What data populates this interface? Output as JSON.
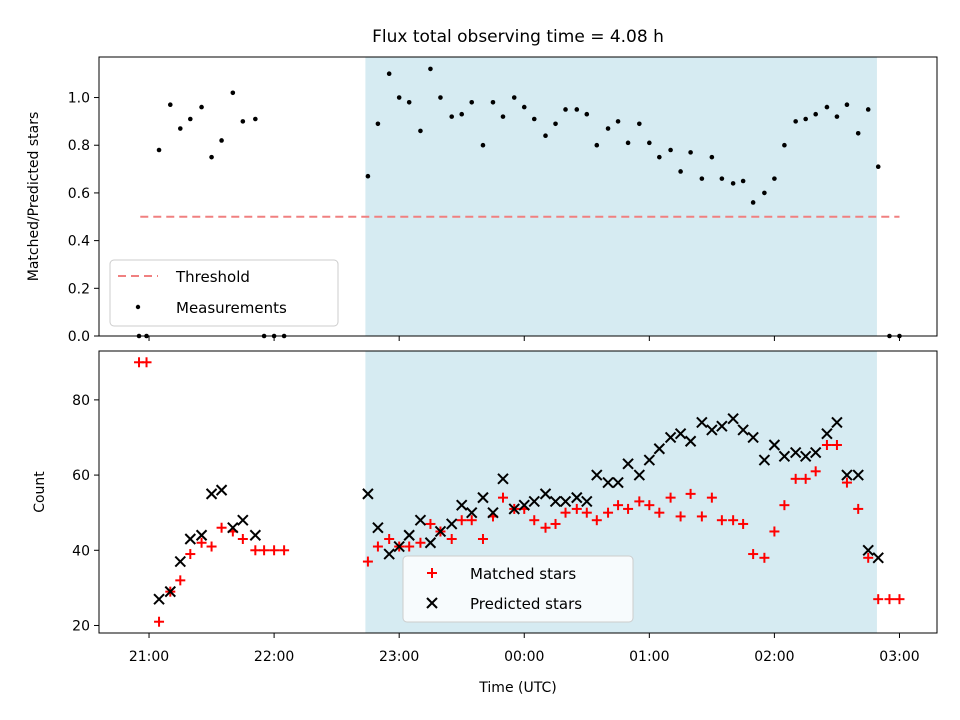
{
  "chart_data": [
    {
      "type": "scatter",
      "title": "Flux total observing time = 4.08 h",
      "xlabel": "",
      "ylabel": "Matched/Predicted stars",
      "ylim": [
        0,
        1.17
      ],
      "yticks": [
        "0.0",
        "0.2",
        "0.4",
        "0.6",
        "0.8",
        "1.0"
      ],
      "xlim_hours": [
        20.6,
        27.3
      ],
      "shaded_span_hours": [
        22.73,
        26.82
      ],
      "legend": {
        "placement": "lower-left",
        "entries": [
          "Threshold",
          "Measurements"
        ]
      },
      "threshold": {
        "name": "Threshold",
        "value": 0.5,
        "x_range_hours": [
          20.93,
          27.0
        ]
      },
      "series": [
        {
          "name": "Measurements",
          "x_hours": [
            20.92,
            20.98,
            21.08,
            21.17,
            21.25,
            21.33,
            21.42,
            21.5,
            21.58,
            21.67,
            21.75,
            21.85,
            21.92,
            22.0,
            22.08,
            22.75,
            22.83,
            22.92,
            23.0,
            23.08,
            23.17,
            23.25,
            23.33,
            23.42,
            23.5,
            23.58,
            23.67,
            23.75,
            23.83,
            23.92,
            24.0,
            24.08,
            24.17,
            24.25,
            24.33,
            24.42,
            24.5,
            24.58,
            24.67,
            24.75,
            24.83,
            24.92,
            25.0,
            25.08,
            25.17,
            25.25,
            25.33,
            25.42,
            25.5,
            25.58,
            25.67,
            25.75,
            25.83,
            25.92,
            26.0,
            26.08,
            26.17,
            26.25,
            26.33,
            26.42,
            26.5,
            26.58,
            26.67,
            26.75,
            26.83,
            26.92,
            27.0
          ],
          "y": [
            0.0,
            0.0,
            0.78,
            0.97,
            0.87,
            0.91,
            0.96,
            0.75,
            0.82,
            1.02,
            0.9,
            0.91,
            0.0,
            0.0,
            0.0,
            0.67,
            0.89,
            1.1,
            1.0,
            0.98,
            0.86,
            1.12,
            1.0,
            0.92,
            0.93,
            0.98,
            0.8,
            0.98,
            0.92,
            1.0,
            0.96,
            0.91,
            0.84,
            0.89,
            0.95,
            0.95,
            0.93,
            0.8,
            0.87,
            0.9,
            0.81,
            0.89,
            0.81,
            0.75,
            0.78,
            0.69,
            0.77,
            0.66,
            0.75,
            0.66,
            0.64,
            0.65,
            0.56,
            0.6,
            0.66,
            0.8,
            0.9,
            0.91,
            0.93,
            0.96,
            0.92,
            0.97,
            0.85,
            0.95,
            0.71,
            0.0,
            0.0
          ]
        }
      ]
    },
    {
      "type": "scatter",
      "title": "",
      "xlabel": "Time (UTC)",
      "ylabel": "Count",
      "ylim": [
        18,
        93
      ],
      "yticks": [
        "20",
        "40",
        "60",
        "80"
      ],
      "xlim_hours": [
        20.6,
        27.3
      ],
      "xticks": [
        {
          "hours": 21,
          "label": "21:00"
        },
        {
          "hours": 22,
          "label": "22:00"
        },
        {
          "hours": 23,
          "label": "23:00"
        },
        {
          "hours": 24,
          "label": "00:00"
        },
        {
          "hours": 25,
          "label": "01:00"
        },
        {
          "hours": 26,
          "label": "02:00"
        },
        {
          "hours": 27,
          "label": "03:00"
        }
      ],
      "shaded_span_hours": [
        22.73,
        26.82
      ],
      "legend": {
        "placement": "lower-center",
        "entries": [
          "Matched stars",
          "Predicted stars"
        ]
      },
      "series": [
        {
          "name": "Matched stars",
          "color": "#ff0000",
          "x_hours": [
            20.92,
            20.98,
            21.08,
            21.17,
            21.25,
            21.33,
            21.42,
            21.5,
            21.58,
            21.67,
            21.75,
            21.85,
            21.92,
            22.0,
            22.08,
            22.75,
            22.83,
            22.92,
            23.0,
            23.08,
            23.17,
            23.25,
            23.33,
            23.42,
            23.5,
            23.58,
            23.67,
            23.75,
            23.83,
            23.92,
            24.0,
            24.08,
            24.17,
            24.25,
            24.33,
            24.42,
            24.5,
            24.58,
            24.67,
            24.75,
            24.83,
            24.92,
            25.0,
            25.08,
            25.17,
            25.25,
            25.33,
            25.42,
            25.5,
            25.58,
            25.67,
            25.75,
            25.83,
            25.92,
            26.0,
            26.08,
            26.17,
            26.25,
            26.33,
            26.42,
            26.5,
            26.58,
            26.67,
            26.75,
            26.83,
            26.92,
            27.0
          ],
          "y": [
            90,
            90,
            21,
            29,
            32,
            39,
            42,
            41,
            46,
            45,
            43,
            40,
            40,
            40,
            40,
            37,
            41,
            43,
            41,
            41,
            42,
            47,
            45,
            43,
            48,
            48,
            43,
            49,
            54,
            51,
            51,
            48,
            46,
            47,
            50,
            51,
            50,
            48,
            50,
            52,
            51,
            53,
            52,
            50,
            54,
            49,
            55,
            49,
            54,
            48,
            48,
            47,
            39,
            38,
            45,
            52,
            59,
            59,
            61,
            68,
            68,
            58,
            51,
            38,
            27,
            27,
            27
          ]
        },
        {
          "name": "Predicted stars",
          "color": "#000000",
          "x_hours": [
            21.08,
            21.17,
            21.25,
            21.33,
            21.42,
            21.5,
            21.58,
            21.67,
            21.75,
            21.85,
            22.75,
            22.83,
            22.92,
            23.0,
            23.08,
            23.17,
            23.25,
            23.33,
            23.42,
            23.5,
            23.58,
            23.67,
            23.75,
            23.83,
            23.92,
            24.0,
            24.08,
            24.17,
            24.25,
            24.33,
            24.42,
            24.5,
            24.58,
            24.67,
            24.75,
            24.83,
            24.92,
            25.0,
            25.08,
            25.17,
            25.25,
            25.33,
            25.42,
            25.5,
            25.58,
            25.67,
            25.75,
            25.83,
            25.92,
            26.0,
            26.08,
            26.17,
            26.25,
            26.33,
            26.42,
            26.5,
            26.58,
            26.67,
            26.75,
            26.83
          ],
          "y": [
            27,
            29,
            37,
            43,
            44,
            55,
            56,
            46,
            48,
            44,
            55,
            46,
            39,
            41,
            44,
            48,
            42,
            45,
            47,
            52,
            50,
            54,
            50,
            59,
            51,
            52,
            53,
            55,
            53,
            53,
            54,
            53,
            60,
            58,
            58,
            63,
            60,
            64,
            67,
            70,
            71,
            69,
            74,
            72,
            73,
            75,
            72,
            70,
            64,
            68,
            65,
            66,
            65,
            66,
            71,
            74,
            60,
            60,
            40,
            38
          ]
        }
      ]
    }
  ]
}
